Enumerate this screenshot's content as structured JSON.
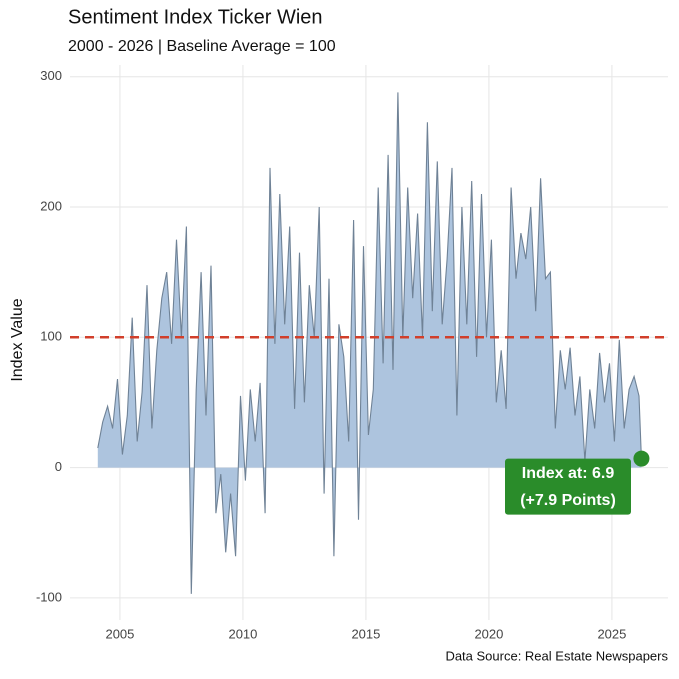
{
  "chart_data": {
    "type": "area",
    "title": "Sentiment Index Ticker Wien",
    "subtitle": "2000 - 2026 | Baseline Average = 100",
    "y_label": "Index Value",
    "source": "Data Source: Real Estate Newspapers",
    "x": [
      2004.1,
      2004.3,
      2004.5,
      2004.7,
      2004.9,
      2005.1,
      2005.3,
      2005.5,
      2005.7,
      2005.9,
      2006.1,
      2006.3,
      2006.5,
      2006.7,
      2006.9,
      2007.1,
      2007.3,
      2007.5,
      2007.7,
      2007.9,
      2008.1,
      2008.3,
      2008.5,
      2008.7,
      2008.9,
      2009.1,
      2009.3,
      2009.5,
      2009.7,
      2009.9,
      2010.1,
      2010.3,
      2010.5,
      2010.7,
      2010.9,
      2011.1,
      2011.3,
      2011.5,
      2011.7,
      2011.9,
      2012.1,
      2012.3,
      2012.5,
      2012.7,
      2012.9,
      2013.1,
      2013.3,
      2013.5,
      2013.7,
      2013.9,
      2014.1,
      2014.3,
      2014.5,
      2014.7,
      2014.9,
      2015.1,
      2015.3,
      2015.5,
      2015.7,
      2015.9,
      2016.1,
      2016.3,
      2016.5,
      2016.7,
      2016.9,
      2017.1,
      2017.3,
      2017.5,
      2017.7,
      2017.9,
      2018.1,
      2018.3,
      2018.5,
      2018.7,
      2018.9,
      2019.1,
      2019.3,
      2019.5,
      2019.7,
      2019.9,
      2020.1,
      2020.3,
      2020.5,
      2020.7,
      2020.9,
      2021.1,
      2021.3,
      2021.5,
      2021.7,
      2021.9,
      2022.1,
      2022.3,
      2022.5,
      2022.7,
      2022.9,
      2023.1,
      2023.3,
      2023.5,
      2023.7,
      2023.9,
      2024.1,
      2024.3,
      2024.5,
      2024.7,
      2024.9,
      2025.1,
      2025.3,
      2025.5,
      2025.7,
      2025.9,
      2026.1,
      2026.2
    ],
    "values": [
      15,
      35,
      47,
      30,
      68,
      10,
      40,
      115,
      20,
      58,
      140,
      30,
      90,
      130,
      150,
      95,
      175,
      100,
      185,
      -97,
      60,
      150,
      40,
      155,
      -35,
      -5,
      -65,
      -20,
      -68,
      55,
      -10,
      60,
      20,
      65,
      -35,
      230,
      95,
      210,
      110,
      185,
      45,
      165,
      50,
      140,
      100,
      200,
      -20,
      145,
      -68,
      110,
      85,
      20,
      190,
      -40,
      170,
      25,
      60,
      215,
      80,
      240,
      75,
      288,
      100,
      215,
      130,
      195,
      100,
      265,
      120,
      235,
      110,
      160,
      230,
      40,
      200,
      110,
      220,
      85,
      210,
      100,
      175,
      50,
      90,
      45,
      215,
      145,
      180,
      160,
      200,
      120,
      222,
      145,
      150,
      30,
      90,
      60,
      92,
      40,
      70,
      5,
      60,
      30,
      88,
      50,
      80,
      20,
      98,
      30,
      60,
      70,
      55,
      6.9
    ],
    "fill_color": "#adc4de",
    "line_color": "#6f8296",
    "xlim": [
      2002.97,
      2027.28
    ],
    "ylim": [
      -117,
      309
    ],
    "xticks": [
      2005,
      2010,
      2015,
      2020,
      2025
    ],
    "yticks": [
      -100,
      0,
      100,
      200,
      300
    ],
    "grid": true,
    "reference_line": {
      "value": 100,
      "color": "#d13f2b"
    },
    "annotation": {
      "lines": [
        "Index at: 6.9",
        "(+7.9 Points)"
      ],
      "color": "#2a8c2a"
    }
  }
}
